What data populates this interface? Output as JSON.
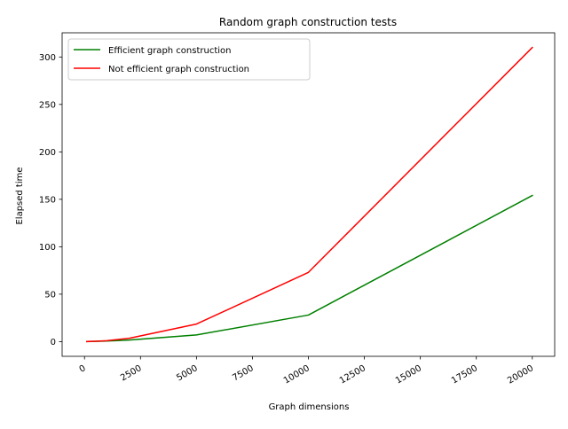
{
  "chart_data": {
    "type": "line",
    "title": "Random graph construction tests",
    "xlabel": "Graph dimensions",
    "ylabel": "Elapsed time",
    "xlim": [
      -1000,
      21000
    ],
    "ylim": [
      -15.5,
      325.5
    ],
    "xticks": [
      0,
      2500,
      5000,
      7500,
      10000,
      12500,
      15000,
      17500,
      20000
    ],
    "yticks": [
      0,
      50,
      100,
      150,
      200,
      250,
      300
    ],
    "grid": false,
    "legend_position": "top-left",
    "x": [
      100,
      500,
      1000,
      2000,
      5000,
      10000,
      20000
    ],
    "series": [
      {
        "name": "Efficient graph construction",
        "color": "#008000",
        "values": [
          0.1,
          0.3,
          0.6,
          1.7,
          7.0,
          28.0,
          154.0
        ]
      },
      {
        "name": "Not efficient graph construction",
        "color": "#ff0000",
        "values": [
          0.1,
          0.4,
          1.0,
          3.5,
          18.5,
          73.0,
          310.0
        ]
      }
    ]
  }
}
